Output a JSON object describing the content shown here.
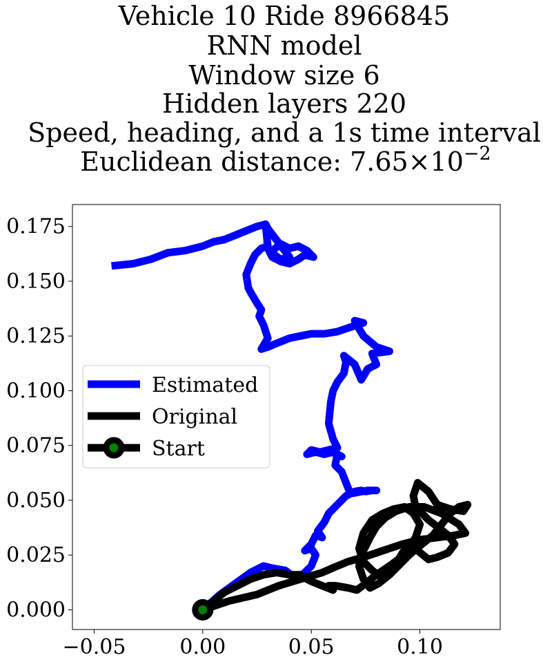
{
  "chart_data": {
    "type": "line",
    "title_lines": [
      "Vehicle 10 Ride 8966845",
      "RNN model",
      "Window size 6",
      "Hidden layers 220",
      "Speed, heading, and a 1s time interval"
    ],
    "title_metric": {
      "label": "Euclidean distance: ",
      "mantissa": "7.65",
      "times": "×10",
      "exponent": "−2"
    },
    "xlabel": "",
    "ylabel": "",
    "xlim": [
      -0.06,
      0.137
    ],
    "ylim": [
      -0.009,
      0.185
    ],
    "x_ticks": [
      -0.05,
      0.0,
      0.05,
      0.1
    ],
    "x_tick_labels": [
      "−0.05",
      "0.00",
      "0.05",
      "0.10"
    ],
    "y_ticks": [
      0.0,
      0.025,
      0.05,
      0.075,
      0.1,
      0.125,
      0.15,
      0.175
    ],
    "y_tick_labels": [
      "0.000",
      "0.025",
      "0.050",
      "0.075",
      "0.100",
      "0.125",
      "0.150",
      "0.175"
    ],
    "grid": false,
    "legend_position": "center-left",
    "series": [
      {
        "name": "Estimated",
        "color": "#0000ff",
        "x": [
          0.0,
          0.008,
          0.015,
          0.022,
          0.028,
          0.032,
          0.038,
          0.042,
          0.046,
          0.05,
          0.052,
          0.05,
          0.047,
          0.05,
          0.052,
          0.055,
          0.053,
          0.056,
          0.058,
          0.062,
          0.066,
          0.07,
          0.073,
          0.075,
          0.078,
          0.08,
          0.076,
          0.068,
          0.066,
          0.064,
          0.061,
          0.062,
          0.064,
          0.06,
          0.056,
          0.052,
          0.048,
          0.05,
          0.054,
          0.058,
          0.062,
          0.06,
          0.058,
          0.059,
          0.06,
          0.062,
          0.065,
          0.066,
          0.065,
          0.07,
          0.073,
          0.076,
          0.08,
          0.078,
          0.086,
          0.08,
          0.074,
          0.071,
          0.07,
          0.074,
          0.068,
          0.062,
          0.056,
          0.05,
          0.045,
          0.04,
          0.035,
          0.03,
          0.027,
          0.03,
          0.028,
          0.026,
          0.027,
          0.025,
          0.022,
          0.021,
          0.02,
          0.022,
          0.024,
          0.027,
          0.03,
          0.029,
          0.029,
          0.03,
          0.032,
          0.036,
          0.04,
          0.044,
          0.047,
          0.051,
          0.048,
          0.044,
          0.04,
          0.036,
          0.032,
          0.033,
          0.036,
          0.04,
          0.03,
          0.029,
          0.025,
          0.02,
          0.015,
          0.01,
          0.005,
          0.0,
          -0.008,
          -0.016,
          -0.024,
          -0.032,
          -0.042
        ],
        "y": [
          0.0,
          0.007,
          0.012,
          0.017,
          0.02,
          0.019,
          0.018,
          0.015,
          0.016,
          0.02,
          0.025,
          0.028,
          0.027,
          0.03,
          0.034,
          0.033,
          0.036,
          0.04,
          0.044,
          0.048,
          0.052,
          0.054,
          0.0545,
          0.054,
          0.0545,
          0.0545,
          0.0545,
          0.053,
          0.058,
          0.063,
          0.066,
          0.071,
          0.07,
          0.072,
          0.071,
          0.072,
          0.071,
          0.073,
          0.072,
          0.073,
          0.074,
          0.078,
          0.085,
          0.095,
          0.1,
          0.104,
          0.108,
          0.113,
          0.116,
          0.112,
          0.105,
          0.11,
          0.112,
          0.117,
          0.118,
          0.12,
          0.125,
          0.13,
          0.132,
          0.131,
          0.129,
          0.127,
          0.126,
          0.126,
          0.125,
          0.124,
          0.122,
          0.12,
          0.119,
          0.124,
          0.13,
          0.134,
          0.137,
          0.14,
          0.145,
          0.147,
          0.153,
          0.158,
          0.162,
          0.165,
          0.166,
          0.175,
          0.176,
          0.165,
          0.161,
          0.159,
          0.158,
          0.16,
          0.162,
          0.161,
          0.164,
          0.166,
          0.165,
          0.167,
          0.164,
          0.162,
          0.16,
          0.161,
          0.174,
          0.176,
          0.175,
          0.173,
          0.171,
          0.169,
          0.168,
          0.166,
          0.164,
          0.163,
          0.16,
          0.158,
          0.157
        ]
      },
      {
        "name": "Original",
        "color": "#000000",
        "x": [
          0.0,
          0.012,
          0.025,
          0.035,
          0.045,
          0.055,
          0.062,
          0.067,
          0.074,
          0.08,
          0.086,
          0.092,
          0.1,
          0.108,
          0.116,
          0.121,
          0.118,
          0.11,
          0.102,
          0.095,
          0.089,
          0.084,
          0.08,
          0.077,
          0.074,
          0.072,
          0.074,
          0.077,
          0.081,
          0.086,
          0.09,
          0.095,
          0.101,
          0.106,
          0.11,
          0.114,
          0.118,
          0.122,
          0.12,
          0.114,
          0.108,
          0.104,
          0.099,
          0.097,
          0.098,
          0.101,
          0.104,
          0.108,
          0.113,
          0.116,
          0.113,
          0.108,
          0.104,
          0.099,
          0.096,
          0.092,
          0.089,
          0.086,
          0.082,
          0.078,
          0.074,
          0.072,
          0.074,
          0.078,
          0.083,
          0.088,
          0.093,
          0.097,
          0.1,
          0.098,
          0.094,
          0.09,
          0.086,
          0.08,
          0.075,
          0.071,
          0.067,
          0.061,
          0.058,
          0.06,
          0.055,
          0.05,
          0.046,
          0.045,
          0.04,
          0.034,
          0.028,
          0.022,
          0.016,
          0.01,
          0.005,
          0.0
        ],
        "y": [
          0.0,
          0.004,
          0.007,
          0.011,
          0.014,
          0.017,
          0.02,
          0.022,
          0.024,
          0.026,
          0.028,
          0.03,
          0.032,
          0.033,
          0.034,
          0.035,
          0.039,
          0.044,
          0.047,
          0.047,
          0.045,
          0.042,
          0.038,
          0.033,
          0.027,
          0.02,
          0.014,
          0.01,
          0.012,
          0.016,
          0.02,
          0.025,
          0.03,
          0.034,
          0.039,
          0.044,
          0.047,
          0.048,
          0.045,
          0.046,
          0.048,
          0.054,
          0.058,
          0.052,
          0.047,
          0.044,
          0.041,
          0.038,
          0.034,
          0.03,
          0.026,
          0.024,
          0.023,
          0.027,
          0.031,
          0.026,
          0.021,
          0.017,
          0.015,
          0.018,
          0.022,
          0.028,
          0.035,
          0.041,
          0.044,
          0.046,
          0.047,
          0.044,
          0.039,
          0.033,
          0.027,
          0.023,
          0.02,
          0.016,
          0.012,
          0.009,
          0.01,
          0.011,
          0.011,
          0.009,
          0.011,
          0.013,
          0.015,
          0.016,
          0.016,
          0.017,
          0.016,
          0.014,
          0.011,
          0.008,
          0.004,
          0.0
        ]
      }
    ],
    "start_marker": {
      "name": "Start",
      "x": 0.0,
      "y": 0.0,
      "color": "#008000",
      "edge_color": "#000000"
    },
    "legend": [
      "Estimated",
      "Original",
      "Start"
    ]
  }
}
